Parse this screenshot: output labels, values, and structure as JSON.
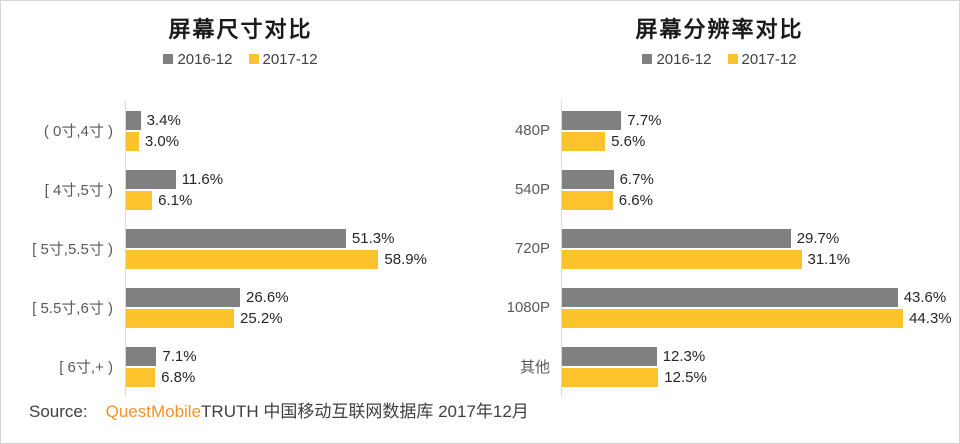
{
  "page": {
    "background": "#ffffff",
    "border_color": "#d5d5d5",
    "axis_color": "#d9d9d9"
  },
  "source": {
    "label": "Source:",
    "brand": "QuestMobile",
    "brand_color": "#f7912c",
    "suffix": "TRUTH 中国移动互联网数据库 2017年12月"
  },
  "chart_data": [
    {
      "type": "bar",
      "orientation": "horizontal",
      "title": "屏幕尺寸对比",
      "categories": [
        "( 0寸,4寸 )",
        "[ 4寸,5寸 )",
        "[ 5寸,5.5寸 )",
        "[ 5.5寸,6寸 )",
        "[ 6寸,+ )"
      ],
      "series": [
        {
          "name": "2016-12",
          "color": "#808080",
          "values": [
            3.4,
            11.6,
            51.3,
            26.6,
            7.1
          ]
        },
        {
          "name": "2017-12",
          "color": "#FDC32D",
          "values": [
            3.0,
            6.1,
            58.9,
            25.2,
            6.8
          ]
        }
      ],
      "value_suffix": "%",
      "value_decimals": 1,
      "xlim": [
        0,
        70
      ],
      "grid": false,
      "data_labels": true,
      "legend_position": "top"
    },
    {
      "type": "bar",
      "orientation": "horizontal",
      "title": "屏幕分辨率对比",
      "categories": [
        "480P",
        "540P",
        "720P",
        "1080P",
        "其他"
      ],
      "series": [
        {
          "name": "2016-12",
          "color": "#808080",
          "values": [
            7.7,
            6.7,
            29.7,
            43.6,
            12.3
          ]
        },
        {
          "name": "2017-12",
          "color": "#FDC32D",
          "values": [
            5.6,
            6.6,
            31.1,
            44.3,
            12.5
          ]
        }
      ],
      "value_suffix": "%",
      "value_decimals": 1,
      "xlim": [
        0,
        50
      ],
      "grid": false,
      "data_labels": true,
      "legend_position": "top"
    }
  ]
}
